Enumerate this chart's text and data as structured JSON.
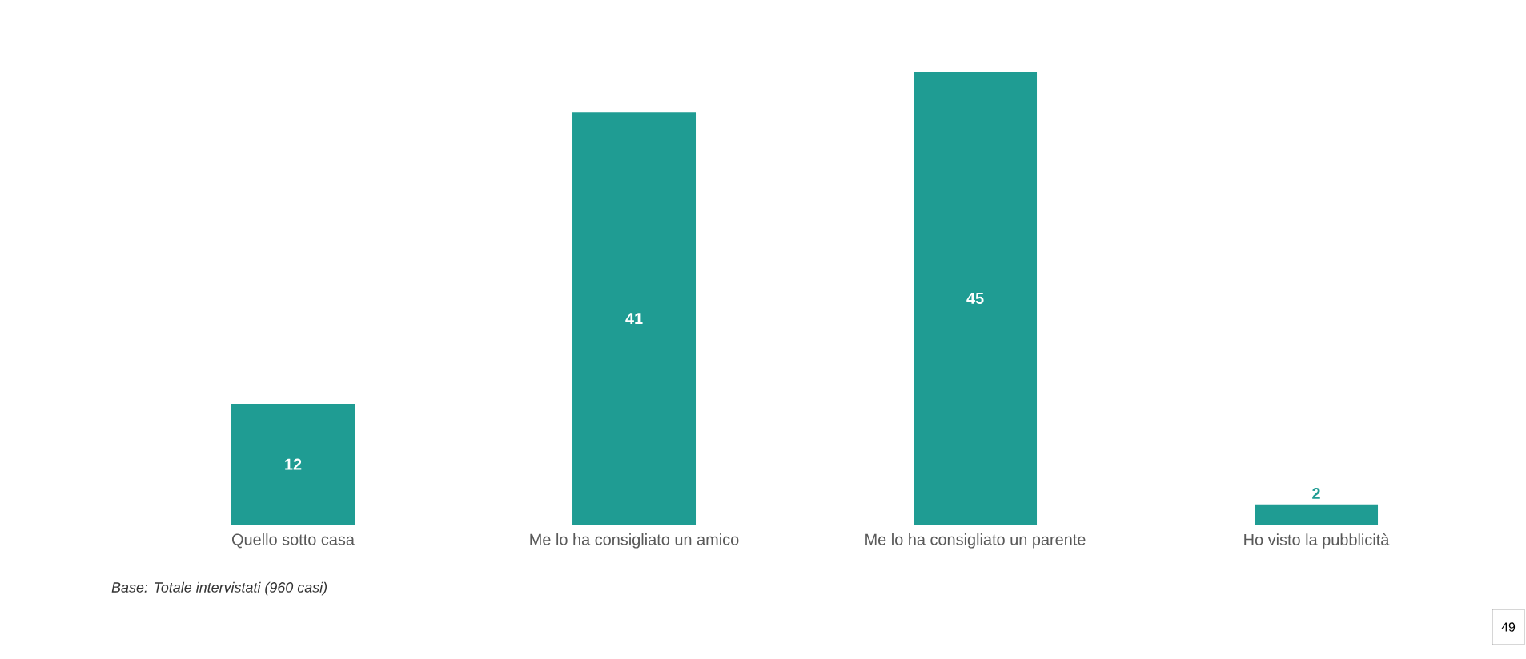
{
  "chart_data": {
    "type": "bar",
    "categories": [
      "Quello sotto casa",
      "Me lo ha consigliato un amico",
      "Me lo ha consigliato un parente",
      "Ho visto la pubblicità"
    ],
    "values": [
      12,
      41,
      45,
      2
    ],
    "color": "#1f9c93",
    "data_labels": true,
    "annotations": [
      "Base: Totale intervistati (960 casi)",
      "49"
    ]
  }
}
